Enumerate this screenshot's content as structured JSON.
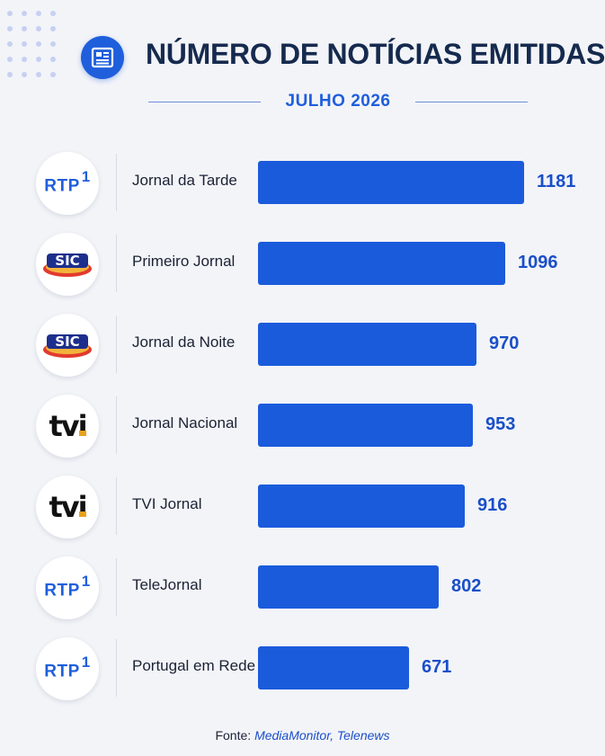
{
  "header": {
    "title": "NÚMERO DE NOTÍCIAS EMITIDAS",
    "subtitle": "JULHO 2026",
    "icon": "newspaper-icon"
  },
  "colors": {
    "bar": "#1a5bdc",
    "accent": "#1f5fdc",
    "title": "#152a4e",
    "value": "#1a4fc8"
  },
  "chart_data": {
    "type": "bar",
    "orientation": "horizontal",
    "title": "NÚMERO DE NOTÍCIAS EMITIDAS",
    "subtitle": "JULHO 2026",
    "categories": [
      "Jornal da Tarde",
      "Primeiro Jornal",
      "Jornal da Noite",
      "Jornal Nacional",
      "TVI Jornal",
      "TeleJornal",
      "Portugal em Rede"
    ],
    "values": [
      1181,
      1096,
      970,
      953,
      916,
      802,
      671
    ],
    "channels": [
      "RTP 1",
      "SIC",
      "SIC",
      "TVI",
      "TVI",
      "RTP 1",
      "RTP 1"
    ],
    "xlim": [
      0,
      1181
    ],
    "grid": false,
    "legend": "none"
  },
  "source": {
    "prefix": "Fonte:",
    "names": "MediaMonitor, Telenews"
  }
}
